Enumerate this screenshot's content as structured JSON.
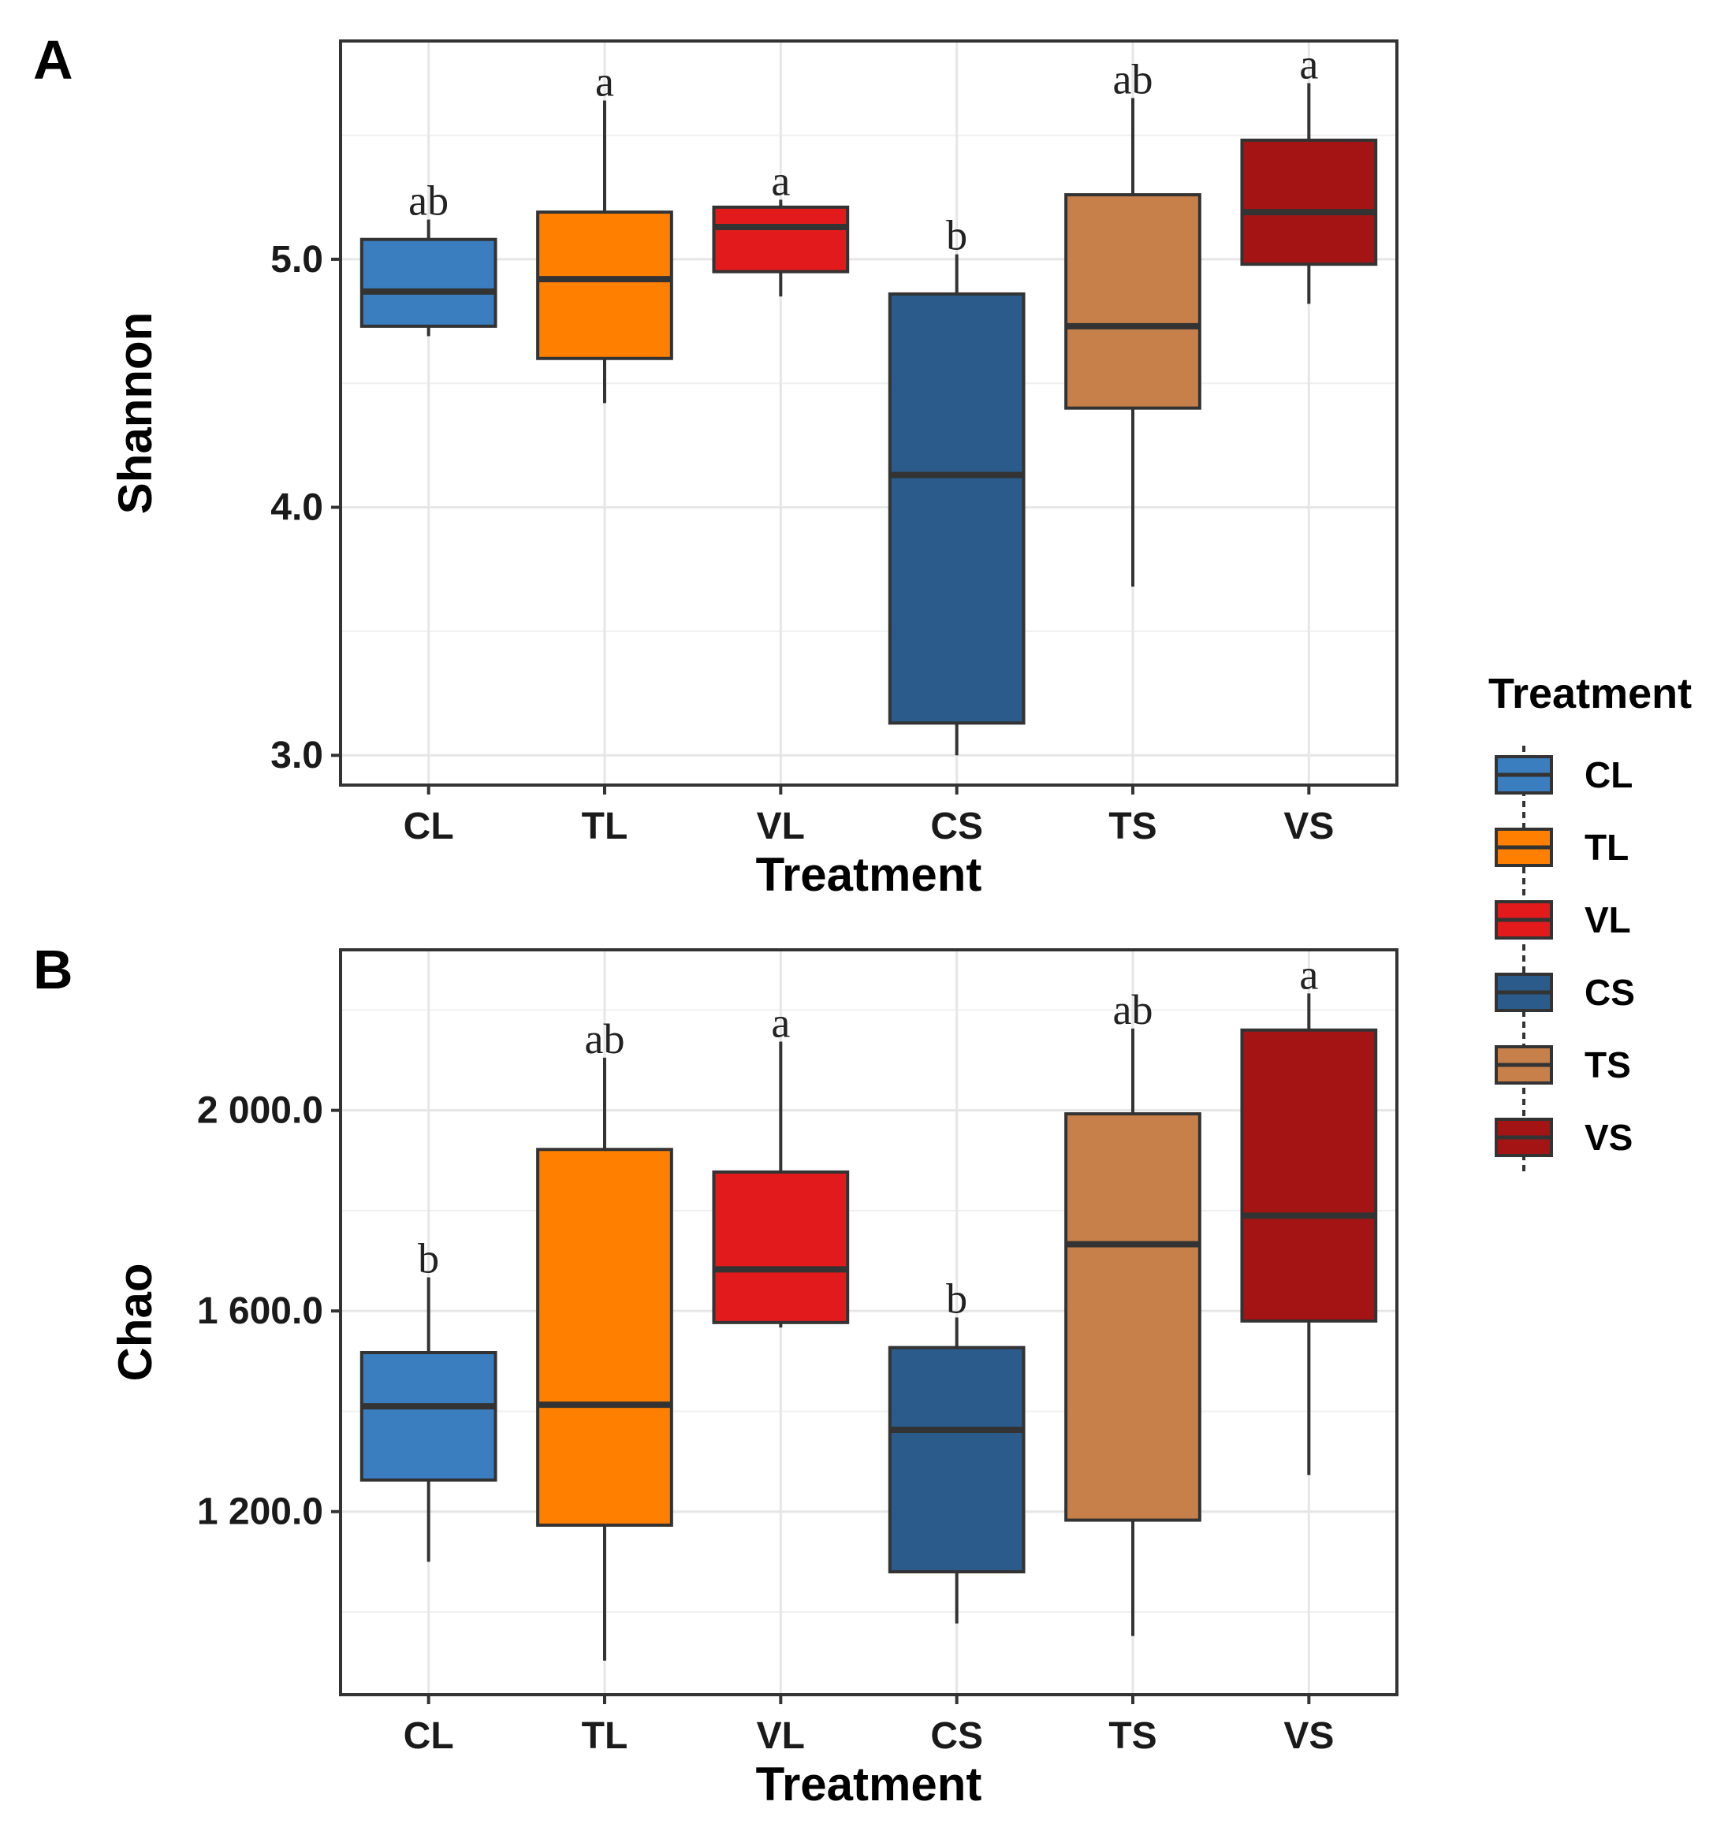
{
  "chart_data": [
    {
      "panel_label": "A",
      "type": "box",
      "xlabel": "Treatment",
      "ylabel": "Shannon",
      "ylim": [
        2.88,
        5.88
      ],
      "yticks": [
        3.0,
        4.0,
        5.0
      ],
      "ytick_labels": [
        "3.0",
        "4.0",
        "5.0"
      ],
      "grid": true,
      "categories": [
        "CL",
        "TL",
        "VL",
        "CS",
        "TS",
        "VS"
      ],
      "boxes": [
        {
          "name": "CL",
          "min": 4.69,
          "q1": 4.73,
          "median": 4.87,
          "q3": 5.08,
          "max": 5.16,
          "sig": "ab"
        },
        {
          "name": "TL",
          "min": 4.42,
          "q1": 4.6,
          "median": 4.92,
          "q3": 5.19,
          "max": 5.64,
          "sig": "a"
        },
        {
          "name": "VL",
          "min": 4.85,
          "q1": 4.95,
          "median": 5.13,
          "q3": 5.21,
          "max": 5.24,
          "sig": "a"
        },
        {
          "name": "CS",
          "min": 3.0,
          "q1": 3.13,
          "median": 4.13,
          "q3": 4.86,
          "max": 5.02,
          "sig": "b"
        },
        {
          "name": "TS",
          "min": 3.68,
          "q1": 4.4,
          "median": 4.73,
          "q3": 5.26,
          "max": 5.65,
          "sig": "ab"
        },
        {
          "name": "VS",
          "min": 4.82,
          "q1": 4.98,
          "median": 5.19,
          "q3": 5.48,
          "max": 5.71,
          "sig": "a"
        }
      ]
    },
    {
      "panel_label": "B",
      "type": "box",
      "xlabel": "Treatment",
      "ylabel": "Chao",
      "ylim": [
        835,
        2320
      ],
      "yticks": [
        1200,
        1600,
        2000
      ],
      "ytick_labels": [
        "1 200.0",
        "1 600.0",
        "2 000.0"
      ],
      "grid": true,
      "categories": [
        "CL",
        "TL",
        "VL",
        "CS",
        "TS",
        "VS"
      ],
      "boxes": [
        {
          "name": "CL",
          "min": 1100,
          "q1": 1263,
          "median": 1410,
          "q3": 1517,
          "max": 1667,
          "sig": "b"
        },
        {
          "name": "TL",
          "min": 903,
          "q1": 1173,
          "median": 1413,
          "q3": 1922,
          "max": 2105,
          "sig": "ab"
        },
        {
          "name": "VL",
          "min": 1567,
          "q1": 1577,
          "median": 1683,
          "q3": 1877,
          "max": 2137,
          "sig": "a"
        },
        {
          "name": "CS",
          "min": 977,
          "q1": 1080,
          "median": 1363,
          "q3": 1527,
          "max": 1587,
          "sig": "b"
        },
        {
          "name": "TS",
          "min": 952,
          "q1": 1183,
          "median": 1733,
          "q3": 1993,
          "max": 2163,
          "sig": "ab"
        },
        {
          "name": "VS",
          "min": 1273,
          "q1": 1580,
          "median": 1790,
          "q3": 2160,
          "max": 2233,
          "sig": "a"
        }
      ]
    }
  ],
  "legend": {
    "title": "Treatment",
    "placement": "right",
    "items": [
      {
        "name": "CL",
        "color": "#3a7ebf"
      },
      {
        "name": "TL",
        "color": "#ff7f00"
      },
      {
        "name": "VL",
        "color": "#e31a1c"
      },
      {
        "name": "CS",
        "color": "#2a5b8a"
      },
      {
        "name": "TS",
        "color": "#c8804a"
      },
      {
        "name": "VS",
        "color": "#a51414"
      }
    ]
  },
  "colors": {
    "CL": "#3a7ebf",
    "TL": "#ff7f00",
    "VL": "#e31a1c",
    "CS": "#2a5b8a",
    "TS": "#c8804a",
    "VS": "#a51414",
    "outline": "#333333",
    "grid": "#e6e6e6"
  }
}
